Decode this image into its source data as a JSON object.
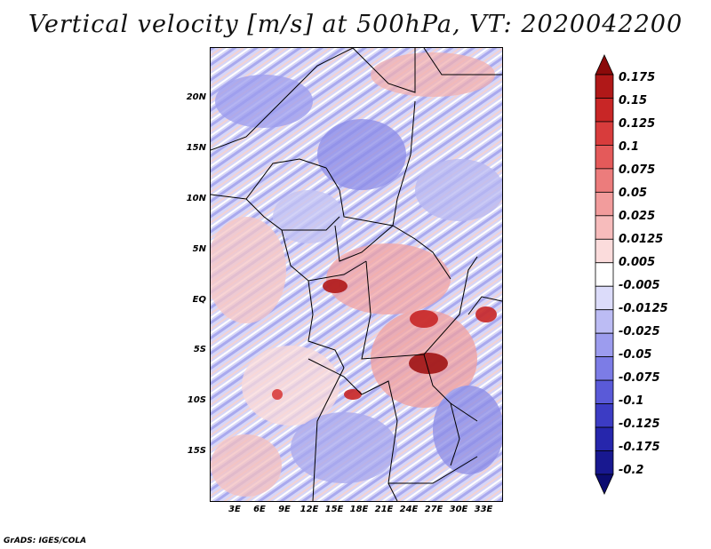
{
  "title": "Vertical velocity [m/s] at 500hPa, VT: 2020042200",
  "footer": "GrADS: IGES/COLA",
  "map": {
    "lat_range": [
      -20,
      25
    ],
    "lon_range": [
      0,
      35
    ],
    "y_ticks": [
      "20N",
      "15N",
      "10N",
      "5N",
      "EQ",
      "5S",
      "10S",
      "15S"
    ],
    "x_ticks": [
      "3E",
      "6E",
      "9E",
      "12E",
      "15E",
      "18E",
      "21E",
      "24E",
      "27E",
      "30E",
      "33E"
    ]
  },
  "colorbar": {
    "labels": [
      "0.175",
      "0.15",
      "0.125",
      "0.1",
      "0.075",
      "0.05",
      "0.025",
      "0.0125",
      "0.005",
      "-0.005",
      "-0.0125",
      "-0.025",
      "-0.05",
      "-0.075",
      "-0.1",
      "-0.125",
      "-0.175",
      "-0.2"
    ],
    "colors": [
      "#8b0a0a",
      "#b01818",
      "#c82626",
      "#d83c3c",
      "#e45a5a",
      "#ec7c7c",
      "#f29c9c",
      "#f7bcbc",
      "#fbdcdc",
      "#ffffff",
      "#dcdcfa",
      "#bcbcf4",
      "#9c9cee",
      "#7c7ce6",
      "#5a5ad8",
      "#3c3cc4",
      "#2626ac",
      "#181890",
      "#0c0c70"
    ]
  }
}
